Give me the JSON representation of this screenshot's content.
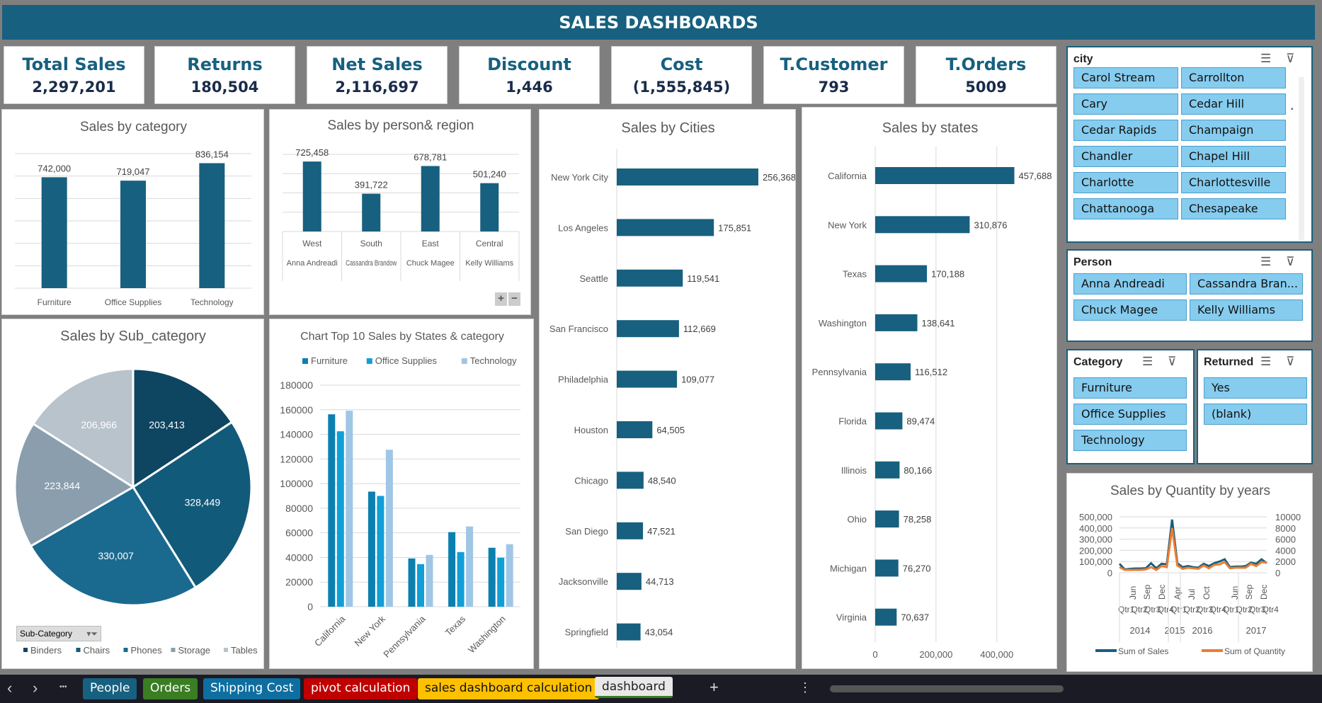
{
  "header": {
    "title": "SALES DASHBOARDS"
  },
  "kpis": [
    {
      "label": "Total Sales",
      "value": "2,297,201"
    },
    {
      "label": "Returns",
      "value": "180,504"
    },
    {
      "label": "Net Sales",
      "value": "2,116,697"
    },
    {
      "label": "Discount",
      "value": "1,446"
    },
    {
      "label": "Cost",
      "value": "(1,555,845)"
    },
    {
      "label": "T.Customer",
      "value": "793"
    },
    {
      "label": "T.Orders",
      "value": "5009"
    }
  ],
  "colors": {
    "primary": "#17607f",
    "furniture": "#0b80b0",
    "office": "#109fd8",
    "technology": "#a0c6e6",
    "quantity": "#ed7d31",
    "slicer_item": "#85ccef"
  },
  "chart_data": [
    {
      "id": "category",
      "type": "bar",
      "title": "Sales by category",
      "categories": [
        "Furniture",
        "Office Supplies",
        "Technology"
      ],
      "values": [
        742000,
        719047,
        836154
      ],
      "labels": [
        "742,000",
        "719,047",
        "836,154"
      ],
      "ylim": [
        0,
        900000
      ],
      "grid": true
    },
    {
      "id": "person",
      "type": "bar",
      "title": "Sales by person& region",
      "categories": [
        "West",
        "South",
        "East",
        "Central"
      ],
      "subcategories": [
        "Anna Andreadi",
        "Cassandra Brandow",
        "Chuck Magee",
        "Kelly Williams"
      ],
      "values": [
        725458,
        391722,
        678781,
        501240
      ],
      "labels": [
        "725,458",
        "391,722",
        "678,781",
        "501,240"
      ],
      "ylim": [
        0,
        800000
      ],
      "grid": true
    },
    {
      "id": "cities",
      "type": "bar",
      "orientation": "horizontal",
      "title": "Sales by Cities",
      "categories": [
        "New York City",
        "Los Angeles",
        "Seattle",
        "San Francisco",
        "Philadelphia",
        "Houston",
        "Chicago",
        "San Diego",
        "Jacksonville",
        "Springfield"
      ],
      "values": [
        256368,
        175851,
        119541,
        112669,
        109077,
        64505,
        48540,
        47521,
        44713,
        43054
      ],
      "labels": [
        "256,368",
        "175,851",
        "119,541",
        "112,669",
        "109,077",
        "64,505",
        "48,540",
        "47,521",
        "44,713",
        "43,054"
      ],
      "xlim": [
        0,
        300000
      ]
    },
    {
      "id": "states",
      "type": "bar",
      "orientation": "horizontal",
      "title": "Sales by states",
      "categories": [
        "California",
        "New York",
        "Texas",
        "Washington",
        "Pennsylvania",
        "Florida",
        "Illinois",
        "Ohio",
        "Michigan",
        "Virginia"
      ],
      "values": [
        457688,
        310876,
        170188,
        138641,
        116512,
        89474,
        80166,
        78258,
        76270,
        70637
      ],
      "labels": [
        "457,688",
        "310,876",
        "170,188",
        "138,641",
        "116,512",
        "89,474",
        "80,166",
        "78,258",
        "76,270",
        "70,637"
      ],
      "xlim": [
        0,
        580000
      ],
      "xticks": [
        {
          "v": 0,
          "t": "0"
        },
        {
          "v": 200000,
          "t": "200,000"
        },
        {
          "v": 400000,
          "t": "400,000"
        }
      ],
      "grid": true
    },
    {
      "id": "subcat",
      "type": "pie",
      "title": "Sales by Sub_category",
      "filter_button": "Sub-Category",
      "categories": [
        "Binders",
        "Chairs",
        "Phones",
        "Storage",
        "Tables"
      ],
      "values": [
        203413,
        328449,
        330007,
        223844,
        206966
      ],
      "labels": [
        "203,413",
        "328,449",
        "330,007",
        "223,844",
        "206,966"
      ],
      "colors": [
        "#0e4560",
        "#125a7a",
        "#1a6a90",
        "#8a9ead",
        "#b8c3cc"
      ]
    },
    {
      "id": "top10",
      "type": "bar",
      "title": "Chart Top 10 Sales by States & category",
      "categories": [
        "California",
        "New York",
        "Pennsylvania",
        "Texas",
        "Washington"
      ],
      "series": [
        {
          "name": "Furniture",
          "values": [
            156300,
            93500,
            39200,
            60600,
            47900
          ]
        },
        {
          "name": "Office Supplies",
          "values": [
            142500,
            90000,
            34600,
            44400,
            39800
          ]
        },
        {
          "name": "Technology",
          "values": [
            159200,
            127500,
            42100,
            65200,
            50800
          ]
        }
      ],
      "ylim": [
        0,
        180000
      ],
      "yticks": [
        "0",
        "20000",
        "40000",
        "60000",
        "80000",
        "100000",
        "120000",
        "140000",
        "160000",
        "180000"
      ],
      "grid": true,
      "legend": "top"
    },
    {
      "id": "quantity",
      "type": "line",
      "title": "Sales by Quantity by years",
      "series": [
        {
          "name": "Sum of Sales",
          "axis": "left",
          "values": [
            80000,
            30000,
            35000,
            38000,
            38000,
            40000,
            85000,
            40000,
            80000,
            75000,
            475000,
            85000,
            50000,
            60000,
            50000,
            45000,
            80000,
            60000,
            85000,
            100000,
            120000,
            50000,
            55000,
            55000,
            60000,
            90000,
            80000,
            120000,
            85000
          ]
        },
        {
          "name": "Sum of Quantity",
          "axis": "right",
          "values": [
            1000,
            500,
            500,
            500,
            500,
            600,
            1000,
            500,
            1200,
            1000,
            8000,
            1300,
            700,
            900,
            800,
            700,
            1300,
            800,
            1400,
            1500,
            1900,
            800,
            900,
            900,
            900,
            1600,
            1200,
            1900,
            1800
          ]
        }
      ],
      "ylim_left": [
        0,
        500000
      ],
      "ylim_right": [
        0,
        10000
      ],
      "yticks_left": [
        "0",
        "100,000",
        "200,000",
        "300,000",
        "400,000",
        "500,000"
      ],
      "yticks_right": [
        "0",
        "2000",
        "4000",
        "6000",
        "8000",
        "10000"
      ],
      "month_labels": [
        "Jun",
        "Sep",
        "Dec",
        "Apr",
        "Jul",
        "Oct",
        "Jun",
        "Sep",
        "Dec"
      ],
      "quarter_labels": [
        "Qtr1",
        "Qtr2",
        "Qtr3",
        "Qtr4",
        "Qtr1",
        "Qtr2",
        "Qtr3",
        "Qtr4",
        "Qtr1",
        "Qtr2",
        "Qtr3",
        "Qtr4"
      ],
      "years": [
        "2014",
        "2015",
        "2016",
        "2017"
      ],
      "legend": "bottom"
    }
  ],
  "slicers": {
    "city": {
      "title": "city",
      "items": [
        "Carol Stream",
        "Carrollton",
        "Cary",
        "Cedar Hill",
        "Cedar Rapids",
        "Champaign",
        "Chandler",
        "Chapel Hill",
        "Charlotte",
        "Charlottesville",
        "Chattanooga",
        "Chesapeake"
      ]
    },
    "person": {
      "title": "Person",
      "items": [
        "Anna Andreadi",
        "Cassandra Bran...",
        "Chuck Magee",
        "Kelly Williams"
      ]
    },
    "category": {
      "title": "Category",
      "items": [
        "Furniture",
        "Office Supplies",
        "Technology"
      ]
    },
    "returned": {
      "title": "Returned",
      "items": [
        "Yes",
        "(blank)"
      ]
    }
  },
  "tabs": [
    {
      "label": "People",
      "color": "#17607f"
    },
    {
      "label": "Orders",
      "color": "#3a7d22"
    },
    {
      "label": "Shipping Cost",
      "color": "#0e6ea0"
    },
    {
      "label": "pivot calculation",
      "color": "#c00000"
    },
    {
      "label": "sales dashboard calculation",
      "color": "#ffc000"
    },
    {
      "label": "dashboard",
      "color": "#e8e8e8",
      "active": true
    }
  ],
  "tabbar": {
    "prev": "‹",
    "next": "›",
    "more": "•••",
    "add": "+",
    "options": "⋮"
  }
}
